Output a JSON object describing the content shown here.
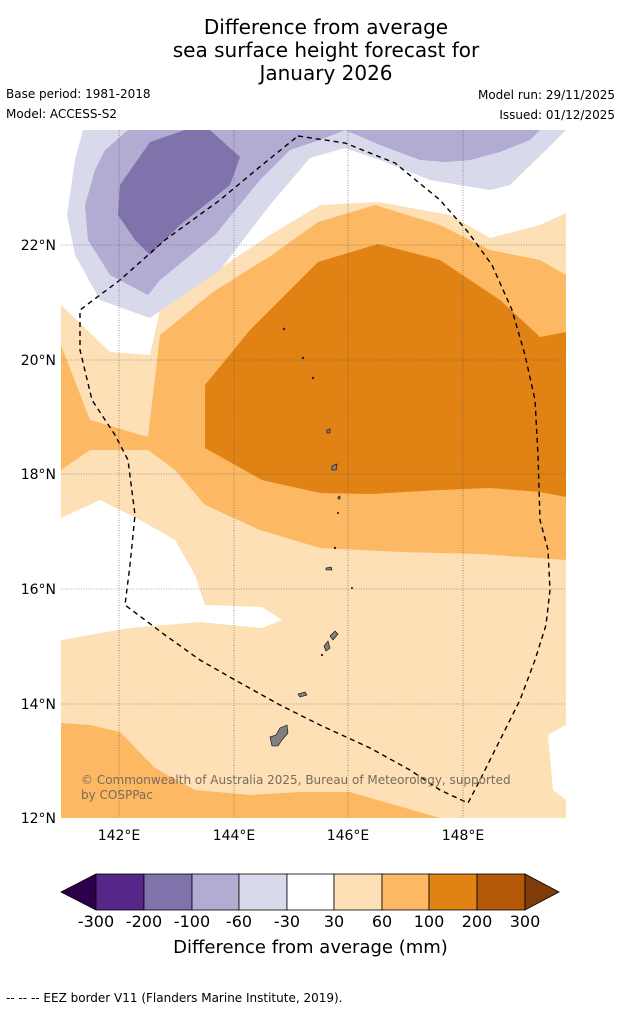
{
  "title": {
    "line1": "Difference from average",
    "line2": "sea surface height forecast for",
    "line3": "January 2026"
  },
  "meta": {
    "base_period": "Base period: 1981-2018",
    "model": "Model: ACCESS-S2",
    "model_run": "Model run: 29/11/2025",
    "issued": "Issued: 01/12/2025"
  },
  "map": {
    "lon_labels": [
      "142°E",
      "144°E",
      "146°E",
      "148°E"
    ],
    "lat_labels": [
      "22°N",
      "20°N",
      "18°N",
      "16°N",
      "14°N",
      "12°N"
    ],
    "copyright_line1": "© Commonwealth of Australia 2025, Bureau of Meteorology, supported",
    "copyright_line2": "by COSPPac",
    "colors": {
      "neg300": "#2d004b",
      "neg200": "#542788",
      "neg100": "#8073ac",
      "neg60": "#b2abd2",
      "neg30": "#d8daeb",
      "zero": "#ffffff",
      "pos30": "#fee0b6",
      "pos60": "#fdb863",
      "pos100": "#e08214",
      "pos200": "#b35806",
      "pos300": "#7f3b08",
      "land": "#808080"
    }
  },
  "colorbar": {
    "ticks": [
      "-300",
      "-200",
      "-100",
      "-60",
      "-30",
      "30",
      "60",
      "100",
      "200",
      "300"
    ],
    "label": "Difference from average (mm)"
  },
  "footer": "--  --  -- EEZ border V11 (Flanders Marine Institute, 2019)."
}
